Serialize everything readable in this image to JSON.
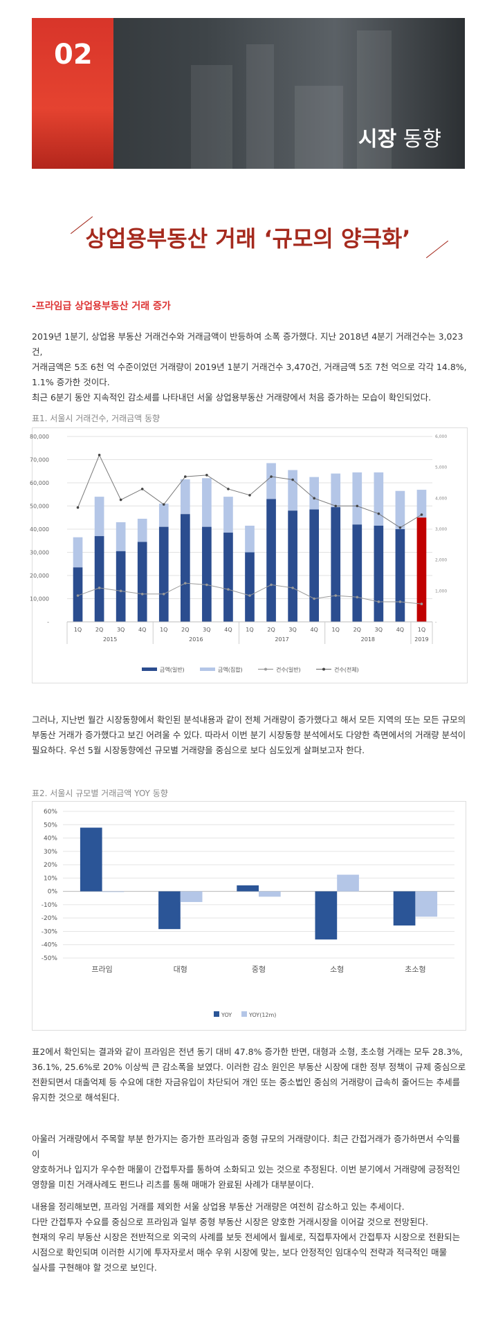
{
  "banner": {
    "number": "02",
    "title_bold": "시장",
    "title_rest": " 동향"
  },
  "headline": "상업용부동산 거래 ‘규모의 양극화’",
  "subheading": "-프라임급 상업용부동산 거래 증가",
  "paragraph1": [
    "2019년 1분기, 상업용 부동산 거래건수와 거래금액이 반등하여 소폭 증가했다. 지난 2018년 4분기 거래건수는 3,023건,",
    "거래금액은 5조 6천 억 수준이었던 거래량이 2019년 1분기 거래건수 3,470건, 거래금액 5조 7천 억으로 각각 14.8%,",
    "1.1% 증가한 것이다.",
    "최근 6분기 동안 지속적인 감소세를 나타내던 서울 상업용부동산 거래량에서 처음 증가하는 모습이 확인되었다."
  ],
  "chart1_caption": "표1. 서울시 거래건수, 거래금액 동향",
  "paragraph2": [
    "그러나, 지난번 월간 시장동향에서 확인된 분석내용과 같이 전체 거래량이 증가했다고 해서 모든 지역의 또는 모든 규모의",
    "부동산 거래가 증가했다고 보긴 어려울 수 있다. 따라서 이번 분기 시장동향 분석에서도 다양한 측면에서의 거래량 분석이",
    "필요하다. 우선 5월 시장동향에선 규모별 거래량을 중심으로 보다 심도있게 살펴보고자 한다."
  ],
  "chart2_caption": "표2. 서울시 규모별 거래금액 YOY 동향",
  "paragraph3": [
    "표2에서 확인되는 결과와 같이 프라임은 전년 동기 대비 47.8% 증가한 반면, 대형과 소형, 초소형 거래는 모두 28.3%,",
    "36.1%, 25.6%로 20% 이상씩 큰 감소폭을 보였다. 이러한 감소 원인은 부동산 시장에 대한 정부 정책이 규제 중심으로",
    "전환되면서 대출억제 등 수요에 대한 자금유입이 차단되어 개인 또는 중소법인 중심의 거래량이 급속히 줄어드는 추세를",
    "유지한 것으로 해석된다."
  ],
  "paragraph4": [
    "아울러 거래량에서 주목할 부분 한가지는 증가한 프라임과 중형 규모의 거래량이다. 최근 간접거래가 증가하면서 수익률이",
    "양호하거나 입지가 우수한 매물이 간접투자를 통하여 소화되고 있는 것으로 추정된다. 이번 분기에서 거래량에 긍정적인",
    "영향을 미친 거래사례도 펀드나 리츠를 통해 매매가 완료된 사례가 대부분이다."
  ],
  "paragraph5": [
    "내용을 정리해보면, 프라임 거래를 제외한 서울 상업용 부동산 거래량은 여전히 감소하고 있는 추세이다.",
    "다만 간접투자 수요를 중심으로 프라임과 일부 중형 부동산 시장은 양호한 거래시장을 이어갈 것으로 전망된다.",
    "현재의 우리 부동산 시장은 전반적으로 외국의 사례를 보듯 전세에서 월세로, 직접투자에서 간접투자 시장으로 전환되는",
    " 시점으로 확인되며 이러한 시기에 투자자로서 매수 우위 시장에 맞는, 보다 안정적인 임대수익 전략과 적극적인 매물",
    "실사를 구현해야 할 것으로 보인다."
  ],
  "chart_data": [
    {
      "type": "bar",
      "title": "표1. 서울시 거래건수, 거래금액 동향",
      "categories": [
        "1Q",
        "2Q",
        "3Q",
        "4Q",
        "1Q",
        "2Q",
        "3Q",
        "4Q",
        "1Q",
        "2Q",
        "3Q",
        "4Q",
        "1Q",
        "2Q",
        "3Q",
        "4Q",
        "1Q"
      ],
      "years": [
        {
          "label": "2015",
          "span": 4
        },
        {
          "label": "2016",
          "span": 4
        },
        {
          "label": "2017",
          "span": 4
        },
        {
          "label": "2018",
          "span": 4
        },
        {
          "label": "2019",
          "span": 1
        }
      ],
      "series": [
        {
          "name": "금액(일반)",
          "kind": "bar-stack-bottom",
          "color": "#2b4d8f",
          "values": [
            23500,
            37000,
            30500,
            34500,
            41000,
            46500,
            41000,
            38500,
            30000,
            53000,
            48000,
            48500,
            49500,
            42000,
            41500,
            40000,
            45000
          ]
        },
        {
          "name": "금액(집합)",
          "kind": "bar-stack-top",
          "color": "#b4c6e7",
          "values": [
            13000,
            17000,
            12500,
            10000,
            10000,
            15000,
            21000,
            15500,
            11500,
            15500,
            17500,
            14000,
            14500,
            22500,
            23000,
            16500,
            12000
          ]
        },
        {
          "name": "건수(일반)",
          "kind": "line",
          "axis": "right",
          "color": "#999999",
          "values": [
            850,
            1100,
            1000,
            900,
            900,
            1250,
            1200,
            1050,
            850,
            1200,
            1100,
            750,
            850,
            800,
            650,
            650,
            580
          ]
        },
        {
          "name": "건수(전체)",
          "kind": "line",
          "axis": "right",
          "color": "#777777",
          "values": [
            3700,
            5400,
            3950,
            4300,
            3800,
            4700,
            4750,
            4300,
            4100,
            4700,
            4600,
            4000,
            3750,
            3750,
            3500,
            3050,
            3470
          ]
        }
      ],
      "highlight_index": 16,
      "highlight_color": "#c00000",
      "left_axis": {
        "ylim": [
          0,
          80000
        ],
        "ticks": [
          "-",
          "10,000",
          "20,000",
          "30,000",
          "40,000",
          "50,000",
          "60,000",
          "70,000",
          "80,000"
        ]
      },
      "right_axis": {
        "ylim": [
          0,
          6000
        ],
        "ticks": [
          "-",
          "1,000",
          "2,000",
          "3,000",
          "4,000",
          "5,000",
          "6,000"
        ]
      },
      "grid": true,
      "legend": "bottom"
    },
    {
      "type": "bar",
      "title": "표2. 서울시 규모별 거래금액 YOY 동향",
      "categories": [
        "프라임",
        "대형",
        "중형",
        "소형",
        "초소형"
      ],
      "series": [
        {
          "name": "YOY",
          "color": "#2b5597",
          "values": [
            47.8,
            -28.3,
            4.5,
            -36.1,
            -25.6
          ]
        },
        {
          "name": "YOY(12m)",
          "color": "#b4c6e7",
          "values": [
            -0.5,
            -8,
            -4,
            12.5,
            -19
          ]
        }
      ],
      "ylim": [
        -50,
        60
      ],
      "ticks": [
        "60%",
        "50%",
        "40%",
        "30%",
        "20%",
        "10%",
        "0%",
        "-10%",
        "-20%",
        "-30%",
        "-40%",
        "-50%"
      ],
      "grid": true,
      "legend": "bottom"
    }
  ]
}
